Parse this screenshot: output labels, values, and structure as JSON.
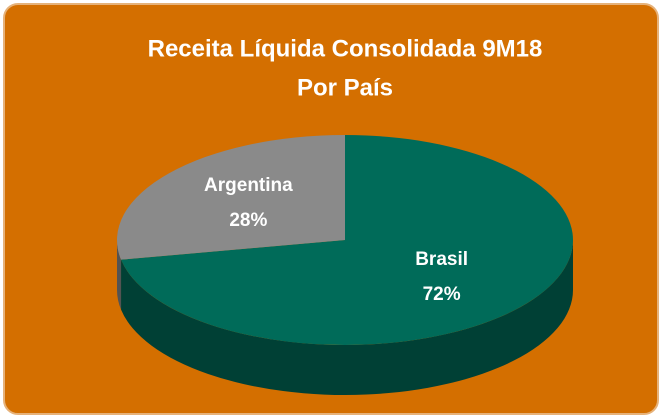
{
  "chart_data": {
    "type": "pie",
    "title": [
      "Receita Líquida Consolidada 9M18",
      "Por País"
    ],
    "categories": [
      "Brasil",
      "Argentina"
    ],
    "values": [
      72,
      28
    ],
    "value_labels": [
      "72%",
      "28%"
    ],
    "colors": [
      "#006b59",
      "#8a8a8a"
    ],
    "background": "#d46f00"
  }
}
